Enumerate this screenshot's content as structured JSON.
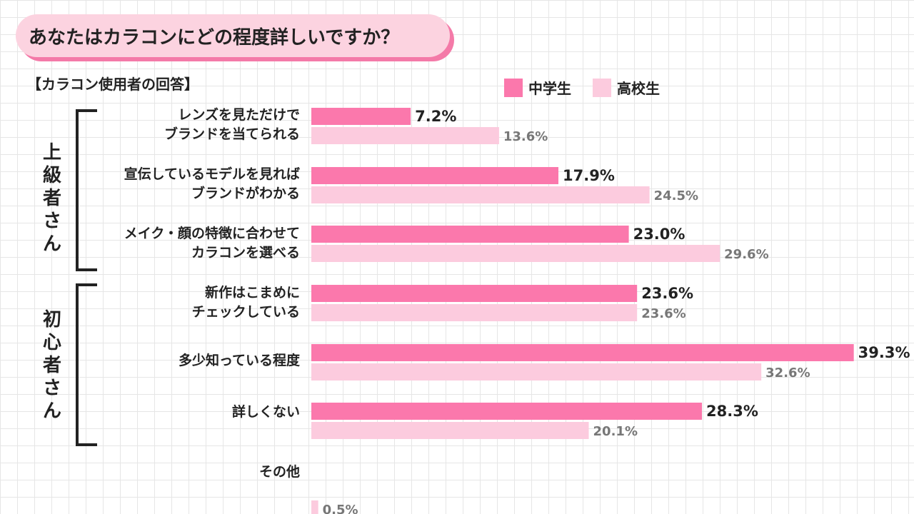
{
  "title": "あなたはカラコンにどの程度詳しいですか？",
  "subtitle": "【カラコン使用者の回答】",
  "colors": {
    "junior_high": "#fb78ac",
    "high_school": "#fccbde",
    "bracket": "#222222",
    "title_bg": "#fcd3e0",
    "title_shadow": "#f47aa8"
  },
  "legend": [
    {
      "name": "中学生",
      "color": "#fb78ac"
    },
    {
      "name": "高校生",
      "color": "#fccbde"
    }
  ],
  "groups": [
    {
      "label": "上級者さん"
    },
    {
      "label": "初心者さん"
    }
  ],
  "chart_data": {
    "type": "bar",
    "orientation": "horizontal",
    "title": "あなたはカラコンにどの程度詳しいですか？",
    "categories": [
      [
        "レンズを見ただけで",
        "ブランドを当てられる"
      ],
      [
        "宣伝しているモデルを見れば",
        "ブランドがわかる"
      ],
      [
        "メイク・顔の特徴に合わせて",
        "カラコンを選べる"
      ],
      [
        "新作はこまめに",
        "チェックしている"
      ],
      [
        "多少知っている程度"
      ],
      [
        "詳しくない"
      ],
      [
        "その他"
      ]
    ],
    "series": [
      {
        "name": "中学生",
        "values": [
          7.2,
          17.9,
          23.0,
          23.6,
          39.3,
          28.3,
          null
        ],
        "labels": [
          "7.2%",
          "17.9%",
          "23.0%",
          "23.6%",
          "39.3%",
          "28.3%",
          null
        ]
      },
      {
        "name": "高校生",
        "values": [
          13.6,
          24.5,
          29.6,
          23.6,
          32.6,
          20.1,
          0.5
        ],
        "labels": [
          "13.6%",
          "24.5%",
          "29.6%",
          "23.6%",
          "32.6%",
          "20.1%",
          "0.5%"
        ]
      }
    ],
    "unit": "%",
    "xlim": [
      0,
      40
    ],
    "grid": false,
    "legend_position": "top-right"
  }
}
